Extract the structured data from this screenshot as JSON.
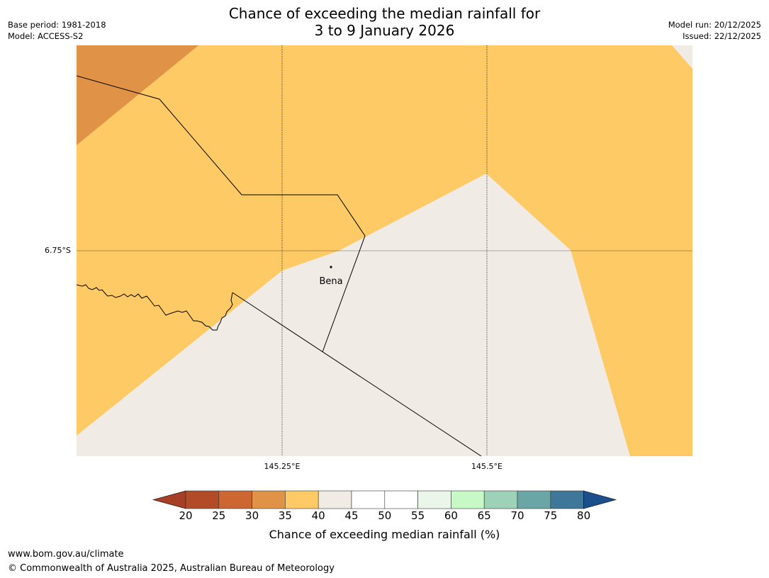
{
  "header": {
    "title_line1": "Chance of exceeding the median rainfall for",
    "title_line2": "3 to 9 January 2026",
    "base_period": "Base period: 1981-2018",
    "model": "Model: ACCESS-S2",
    "model_run": "Model run: 20/12/2025",
    "issued": "Issued: 22/12/2025"
  },
  "map": {
    "lat_label": "6.75°S",
    "lon_labels": [
      "145.25°E",
      "145.5°E"
    ],
    "place_label": "Bena",
    "colors": {
      "c30_35": "#e09346",
      "c35_40": "#fdca65",
      "c40_45": "#f1ebe6",
      "boundary": "#000000",
      "graticule": "#000000"
    }
  },
  "colorbar": {
    "ticks": [
      "20",
      "25",
      "30",
      "35",
      "40",
      "45",
      "50",
      "55",
      "60",
      "65",
      "70",
      "75",
      "80"
    ],
    "colors": [
      "#a63f26",
      "#b24b27",
      "#cd6731",
      "#e09346",
      "#fdca65",
      "#f1ebe6",
      "#ffffff",
      "#ffffff",
      "#e9f6e9",
      "#c6f9c6",
      "#9dd2b8",
      "#6ba6a6",
      "#3e7799",
      "#1a4f8c"
    ],
    "label": "Chance of exceeding median rainfall (%)"
  },
  "footer": {
    "url": "www.bom.gov.au/climate",
    "copyright": "© Commonwealth of Australia 2025, Australian Bureau of Meteorology"
  }
}
